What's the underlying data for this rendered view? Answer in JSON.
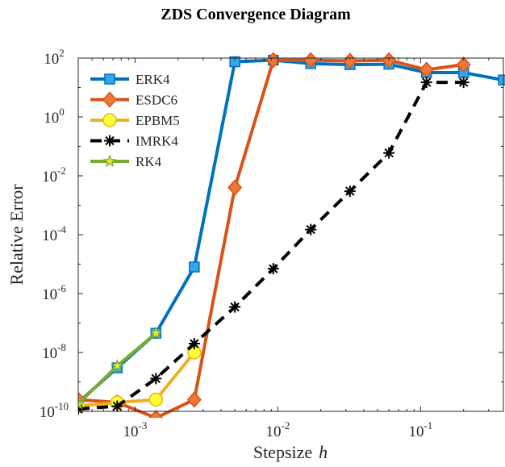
{
  "chart_data": {
    "type": "line",
    "title": "ZDS Convergence Diagram",
    "xlabel": "Stepsize",
    "xlabel_var": "h",
    "ylabel": "Relative Error",
    "xscale": "log",
    "yscale": "log",
    "xlim": [
      0.0004,
      0.38
    ],
    "ylim": [
      1e-10,
      100
    ],
    "x_ticks": [
      {
        "value": 0.001,
        "base": "10",
        "exp": "-3"
      },
      {
        "value": 0.01,
        "base": "10",
        "exp": "-2"
      },
      {
        "value": 0.1,
        "base": "10",
        "exp": "-1"
      }
    ],
    "y_ticks": [
      {
        "value": 1e-10,
        "base": "10",
        "exp": "-10"
      },
      {
        "value": 1e-08,
        "base": "10",
        "exp": "-8"
      },
      {
        "value": 1e-06,
        "base": "10",
        "exp": "-6"
      },
      {
        "value": 0.0001,
        "base": "10",
        "exp": "-4"
      },
      {
        "value": 0.01,
        "base": "10",
        "exp": "-2"
      },
      {
        "value": 1,
        "base": "10",
        "exp": "0"
      },
      {
        "value": 100,
        "base": "10",
        "exp": "2"
      }
    ],
    "grid": false,
    "legend_position": "top-left",
    "series": [
      {
        "name": "ERK4",
        "color": "#0072BD",
        "marker": "square",
        "line": "solid",
        "x": [
          0.0004,
          0.00075,
          0.0014,
          0.0026,
          0.005,
          0.0093,
          0.017,
          0.032,
          0.06,
          0.11,
          0.2,
          0.38
        ],
        "y": [
          2e-10,
          3e-09,
          4.5e-08,
          8e-06,
          75,
          85,
          65,
          60,
          62,
          32,
          32,
          18
        ]
      },
      {
        "name": "ESDC6",
        "color": "#D95319",
        "marker": "diamond",
        "line": "solid",
        "x": [
          0.0004,
          0.00075,
          0.0014,
          0.0026,
          0.005,
          0.0093,
          0.017,
          0.032,
          0.06,
          0.11,
          0.2
        ],
        "y": [
          2.5e-10,
          2e-10,
          6e-11,
          2.5e-10,
          0.004,
          85,
          85,
          80,
          85,
          40,
          60
        ]
      },
      {
        "name": "EPBM5",
        "color": "#EDB120",
        "marker": "circle",
        "line": "solid",
        "x": [
          0.0004,
          0.00075,
          0.0014,
          0.0026
        ],
        "y": [
          1.5e-10,
          2e-10,
          2.5e-10,
          1e-08
        ]
      },
      {
        "name": "IMRK4",
        "color": "#000000",
        "marker": "asterisk",
        "line": "dashed",
        "x": [
          0.0004,
          0.00075,
          0.0014,
          0.0026,
          0.005,
          0.0093,
          0.017,
          0.032,
          0.06,
          0.11,
          0.2
        ],
        "y": [
          1.2e-10,
          1.5e-10,
          1.3e-09,
          2e-08,
          3.5e-07,
          7e-06,
          0.00015,
          0.003,
          0.06,
          15,
          15
        ]
      },
      {
        "name": "RK4",
        "color": "#77AC30",
        "marker": "star",
        "line": "solid",
        "x": [
          0.0004,
          0.00075,
          0.0014
        ],
        "y": [
          1.8e-10,
          3.5e-09,
          4.5e-08
        ]
      }
    ]
  }
}
